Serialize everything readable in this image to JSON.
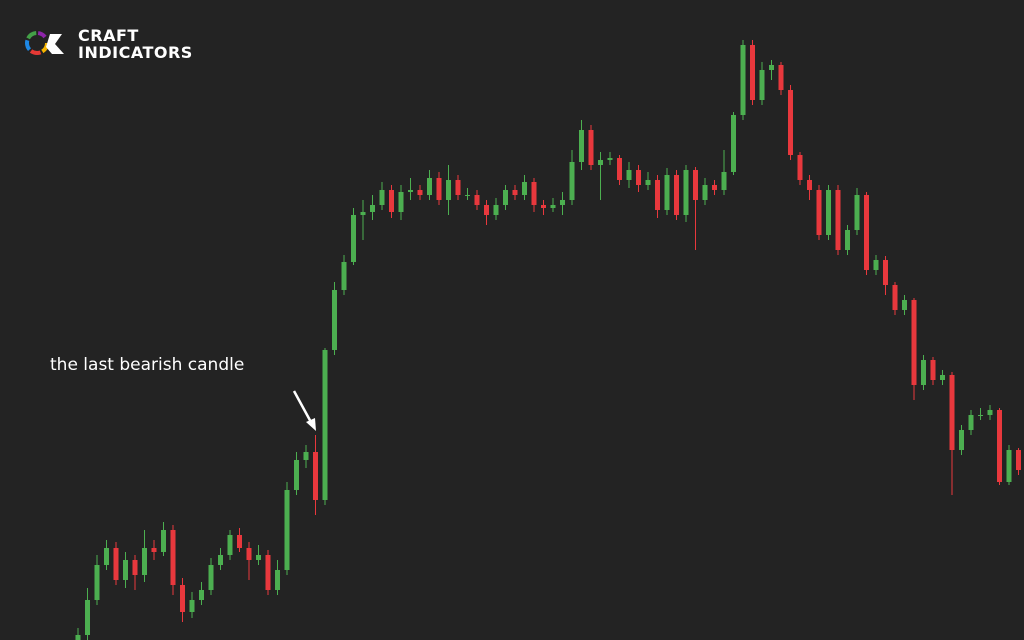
{
  "brand": {
    "line1": "CRAFT",
    "line2": "INDICATORS"
  },
  "chart_data": {
    "type": "candlestick",
    "annotation": "the last bearish candle",
    "up_color": "#4caf50",
    "down_color": "#e8383d",
    "ylim": [
      0,
      640
    ],
    "open": [
      0,
      5,
      40,
      75,
      92,
      60,
      80,
      65,
      92,
      88,
      110,
      55,
      28,
      40,
      50,
      75,
      85,
      105,
      92,
      80,
      85,
      50,
      70,
      150,
      180,
      188,
      140,
      290,
      350,
      378,
      425,
      428,
      435,
      450,
      428,
      448,
      450,
      445,
      462,
      440,
      460,
      445,
      445,
      435,
      425,
      435,
      450,
      445,
      458,
      435,
      432,
      435,
      440,
      478,
      510,
      475,
      480,
      482,
      460,
      470,
      455,
      460,
      430,
      465,
      425,
      470,
      440,
      455,
      450,
      468,
      525,
      595,
      540,
      570,
      575,
      550,
      485,
      460,
      450,
      405,
      450,
      390,
      410,
      445,
      370,
      380,
      355,
      330,
      340,
      255,
      280,
      260,
      265,
      190,
      210,
      225,
      225,
      230,
      158,
      190
    ],
    "high": [
      12,
      52,
      85,
      100,
      98,
      88,
      85,
      110,
      100,
      118,
      115,
      62,
      48,
      58,
      82,
      92,
      110,
      112,
      98,
      95,
      90,
      80,
      158,
      188,
      195,
      205,
      292,
      358,
      385,
      432,
      440,
      445,
      458,
      455,
      455,
      462,
      455,
      470,
      468,
      475,
      465,
      452,
      450,
      440,
      442,
      455,
      455,
      465,
      462,
      440,
      442,
      448,
      490,
      520,
      515,
      488,
      488,
      485,
      478,
      475,
      468,
      465,
      472,
      470,
      475,
      473,
      462,
      460,
      490,
      528,
      600,
      600,
      578,
      580,
      578,
      555,
      488,
      465,
      455,
      455,
      455,
      415,
      452,
      448,
      385,
      384,
      358,
      345,
      342,
      285,
      283,
      270,
      268,
      215,
      230,
      232,
      235,
      232,
      195,
      192
    ],
    "low": [
      0,
      0,
      35,
      70,
      55,
      52,
      50,
      58,
      80,
      84,
      45,
      18,
      22,
      35,
      45,
      70,
      80,
      88,
      60,
      75,
      45,
      45,
      65,
      145,
      172,
      125,
      135,
      285,
      345,
      375,
      400,
      420,
      430,
      422,
      420,
      440,
      440,
      440,
      435,
      425,
      440,
      440,
      430,
      415,
      420,
      430,
      440,
      440,
      428,
      425,
      428,
      425,
      435,
      470,
      470,
      440,
      475,
      455,
      452,
      448,
      450,
      422,
      425,
      420,
      418,
      390,
      435,
      445,
      445,
      465,
      520,
      535,
      535,
      560,
      545,
      480,
      455,
      440,
      400,
      400,
      385,
      385,
      405,
      365,
      365,
      345,
      325,
      325,
      240,
      250,
      255,
      255,
      145,
      185,
      205,
      220,
      220,
      155,
      155,
      165
    ],
    "close": [
      5,
      40,
      75,
      92,
      60,
      80,
      65,
      92,
      88,
      110,
      55,
      28,
      40,
      50,
      75,
      85,
      105,
      92,
      80,
      85,
      50,
      70,
      150,
      180,
      188,
      140,
      290,
      350,
      378,
      425,
      428,
      435,
      450,
      428,
      448,
      450,
      445,
      462,
      440,
      460,
      445,
      445,
      435,
      425,
      435,
      450,
      445,
      458,
      435,
      432,
      435,
      440,
      478,
      510,
      475,
      480,
      482,
      460,
      470,
      455,
      460,
      430,
      465,
      425,
      470,
      440,
      455,
      450,
      468,
      525,
      595,
      540,
      570,
      575,
      550,
      485,
      460,
      450,
      405,
      450,
      390,
      410,
      445,
      370,
      380,
      355,
      330,
      340,
      255,
      280,
      260,
      265,
      190,
      210,
      225,
      225,
      230,
      158,
      190,
      170
    ]
  }
}
